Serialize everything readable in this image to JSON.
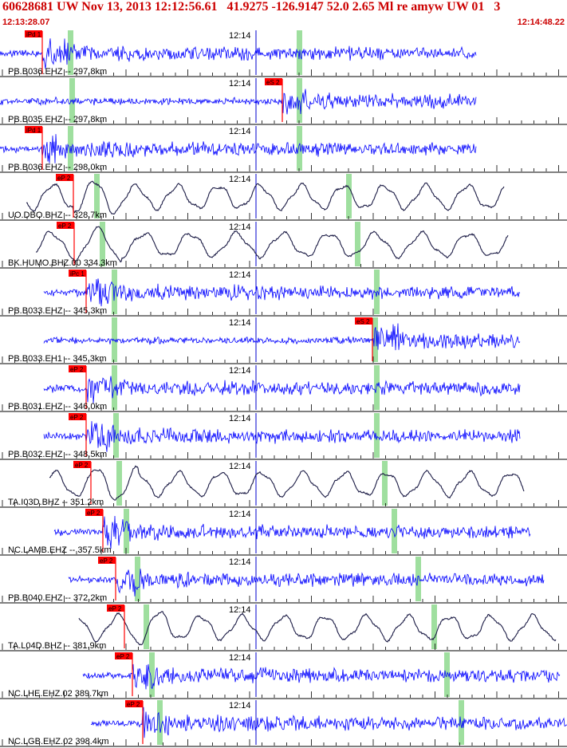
{
  "header": {
    "title": "60628681 UW Nov 13, 2013 12:12:56.61   41.9275 -126.9147 52.0 2.65 Ml re amyw UW 01   3",
    "start_time": "12:13:28.07",
    "end_time": "12:14:48.22"
  },
  "minute_label": "12:14",
  "colors": {
    "trace_blue": "#0000ff",
    "trace_black": "#1a1a44",
    "pick_red": "#ff0000",
    "highlight_green": "#9fdf9f",
    "header_red": "#cc0000"
  },
  "traces": [
    {
      "label": "PB.B036.EHZ -- 297.8km",
      "pick": "iPd 1",
      "type": "hf",
      "color": "blue"
    },
    {
      "label": "PB.B035.EHZ -- 297.8km",
      "pick": "eS 2",
      "type": "hf",
      "color": "blue"
    },
    {
      "label": "PB.B036.EHZ -- 298.0km",
      "pick": "iPd 1",
      "type": "hf",
      "color": "blue"
    },
    {
      "label": "UO.DBO.BHZ -- 328.7km",
      "pick": "eP 2",
      "type": "lp",
      "color": "black"
    },
    {
      "label": "BK.HUMO.BHZ.00 334.3km",
      "pick": "eP 2",
      "type": "lp",
      "color": "black"
    },
    {
      "label": "PB.B033.EHZ -- 345.3km",
      "pick": "iPc 1",
      "type": "hf",
      "color": "blue"
    },
    {
      "label": "PB.B033.EH1 -- 345.3km",
      "pick": "eS 2",
      "type": "hf",
      "color": "blue"
    },
    {
      "label": "PB.B031.EHZ -- 346.0km",
      "pick": "eP 2",
      "type": "hf",
      "color": "blue"
    },
    {
      "label": "PB.B032.EHZ -- 348.5km",
      "pick": "eP 2",
      "type": "hf",
      "color": "blue"
    },
    {
      "label": "TA.I03D.BHZ -- 351.2km",
      "pick": "eP 2",
      "type": "lp",
      "color": "black"
    },
    {
      "label": "NC.LAMB.EHZ -- 357.5km",
      "pick": "eP 2",
      "type": "hf",
      "color": "blue"
    },
    {
      "label": "PB.B040.EHZ -- 372.2km",
      "pick": "eP 2",
      "type": "hf",
      "color": "blue"
    },
    {
      "label": "TA.L04D.BHZ -- 381.9km",
      "pick": "eP 2",
      "type": "lp",
      "color": "black"
    },
    {
      "label": "NC.LHE.EHZ.02 389.7km",
      "pick": "eP 2",
      "type": "hf",
      "color": "blue"
    },
    {
      "label": "NC.LGB.EHZ.02 398.4km",
      "pick": "eP 2",
      "type": "hf",
      "color": "blue"
    }
  ]
}
